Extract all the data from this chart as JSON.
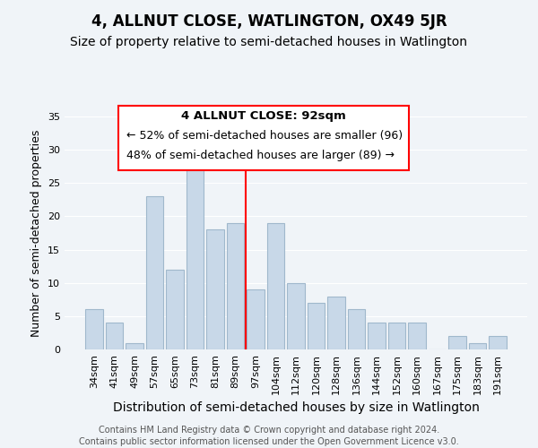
{
  "title": "4, ALLNUT CLOSE, WATLINGTON, OX49 5JR",
  "subtitle": "Size of property relative to semi-detached houses in Watlington",
  "xlabel": "Distribution of semi-detached houses by size in Watlington",
  "ylabel": "Number of semi-detached properties",
  "bar_color": "#c8d8e8",
  "bar_edge_color": "#a0b8cc",
  "background_color": "#f0f4f8",
  "categories": [
    "34sqm",
    "41sqm",
    "49sqm",
    "57sqm",
    "65sqm",
    "73sqm",
    "81sqm",
    "89sqm",
    "97sqm",
    "104sqm",
    "112sqm",
    "120sqm",
    "128sqm",
    "136sqm",
    "144sqm",
    "152sqm",
    "160sqm",
    "167sqm",
    "175sqm",
    "183sqm",
    "191sqm"
  ],
  "values": [
    6,
    4,
    1,
    23,
    12,
    27,
    18,
    19,
    9,
    19,
    10,
    7,
    8,
    6,
    4,
    4,
    4,
    0,
    2,
    1,
    2
  ],
  "ylim": [
    0,
    35
  ],
  "yticks": [
    0,
    5,
    10,
    15,
    20,
    25,
    30,
    35
  ],
  "property_line_x": 7.5,
  "property_label": "4 ALLNUT CLOSE: 92sqm",
  "annotation_line1": "← 52% of semi-detached houses are smaller (96)",
  "annotation_line2": "48% of semi-detached houses are larger (89) →",
  "footer_line1": "Contains HM Land Registry data © Crown copyright and database right 2024.",
  "footer_line2": "Contains public sector information licensed under the Open Government Licence v3.0.",
  "title_fontsize": 12,
  "subtitle_fontsize": 10,
  "xlabel_fontsize": 10,
  "ylabel_fontsize": 9,
  "tick_fontsize": 8,
  "annotation_fontsize": 9,
  "footer_fontsize": 7
}
